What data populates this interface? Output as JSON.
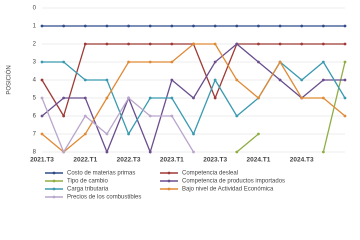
{
  "chart_data": {
    "type": "line",
    "y_label": "POSICIÓN",
    "categories": [
      "2021.T3",
      null,
      "2022.T1",
      null,
      "2022.T3",
      null,
      "2023.T1",
      null,
      "2023.T3",
      null,
      "2024.T1",
      null,
      "2024.T3",
      null,
      null
    ],
    "ylim": [
      8,
      0
    ],
    "yticks": [
      0,
      1,
      2,
      3,
      4,
      5,
      6,
      7,
      8
    ],
    "grid": true,
    "series": [
      {
        "name": "Costo de materias primas",
        "color": "#2f4b8a",
        "values": [
          1,
          1,
          1,
          1,
          1,
          1,
          1,
          1,
          1,
          1,
          1,
          1,
          1,
          1,
          1
        ]
      },
      {
        "name": "Competencia desleal",
        "color": "#9e3a36",
        "values": [
          4,
          6,
          2,
          2,
          2,
          2,
          2,
          2,
          5,
          2,
          2,
          2,
          2,
          2,
          2
        ]
      },
      {
        "name": "Tipo de cambio",
        "color": "#8fae44",
        "values": [
          null,
          null,
          null,
          null,
          null,
          null,
          null,
          null,
          null,
          8,
          7,
          null,
          null,
          8,
          3
        ]
      },
      {
        "name": "Competencia de productos importados",
        "color": "#6a4e8e",
        "values": [
          6,
          5,
          5,
          8,
          5,
          8,
          4,
          5,
          3,
          2,
          3,
          4,
          5,
          4,
          4
        ]
      },
      {
        "name": "Carga tributaria",
        "color": "#3b9ab0",
        "values": [
          3,
          3,
          4,
          4,
          7,
          5,
          5,
          7,
          4,
          6,
          5,
          3,
          4,
          3,
          5
        ]
      },
      {
        "name": "Bajo nivel de Actividad Económica",
        "color": "#e08a36",
        "values": [
          7,
          8,
          7,
          5,
          3,
          3,
          3,
          2,
          2,
          4,
          5,
          3,
          5,
          5,
          6
        ]
      },
      {
        "name": "Precios de los combustibles",
        "color": "#b9a6cc",
        "values": [
          5,
          8,
          6,
          7,
          5,
          6,
          6,
          8,
          null,
          null,
          null,
          null,
          null,
          null,
          null
        ]
      }
    ]
  }
}
